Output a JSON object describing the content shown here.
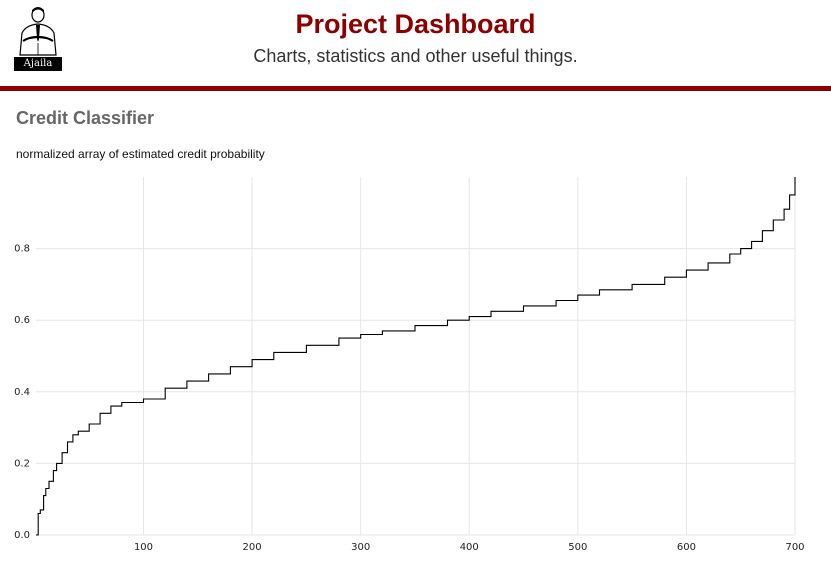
{
  "header": {
    "title": "Project Dashboard",
    "subtitle": "Charts, statistics and other useful things.",
    "logo_text": "Ajaila",
    "accent_color": "#8b0000"
  },
  "section": {
    "title": "Credit Classifier",
    "caption": "normalized array of estimated credit probability"
  },
  "chart_data": {
    "type": "line",
    "title": "",
    "xlabel": "",
    "ylabel": "",
    "xlim": [
      1,
      700
    ],
    "ylim": [
      0,
      1.0
    ],
    "x_ticks": [
      100,
      200,
      300,
      400,
      500,
      600,
      700
    ],
    "y_ticks": [
      0.0,
      0.2,
      0.4,
      0.6,
      0.8
    ],
    "y_tick_labels": [
      "0.0",
      "0.2",
      "0.4",
      "0.6",
      "0.8"
    ],
    "grid": true,
    "line_color": "#000000",
    "series": [
      {
        "x": [
          1,
          3,
          5,
          8,
          10,
          13,
          17,
          20,
          25,
          30,
          35,
          40,
          50,
          60,
          70,
          80,
          100,
          120,
          140,
          160,
          180,
          200,
          220,
          250,
          280,
          300,
          320,
          350,
          380,
          400,
          420,
          450,
          480,
          500,
          520,
          550,
          580,
          600,
          620,
          640,
          650,
          660,
          670,
          680,
          690,
          695,
          700
        ],
        "y": [
          0.0,
          0.06,
          0.07,
          0.11,
          0.13,
          0.15,
          0.18,
          0.2,
          0.23,
          0.26,
          0.28,
          0.29,
          0.31,
          0.34,
          0.36,
          0.37,
          0.38,
          0.41,
          0.43,
          0.45,
          0.47,
          0.49,
          0.51,
          0.53,
          0.55,
          0.56,
          0.57,
          0.585,
          0.6,
          0.61,
          0.625,
          0.64,
          0.655,
          0.67,
          0.685,
          0.7,
          0.72,
          0.74,
          0.76,
          0.785,
          0.8,
          0.82,
          0.85,
          0.88,
          0.91,
          0.95,
          1.0
        ]
      }
    ]
  }
}
